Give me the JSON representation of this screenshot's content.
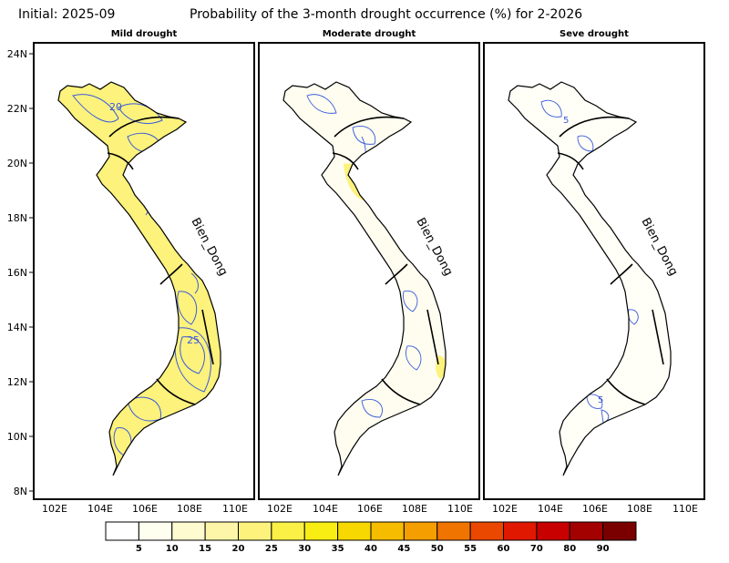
{
  "header": {
    "initial": "Initial: 2025-09",
    "title": "Probability of the 3-month drought occurrence (%) for 2-2026"
  },
  "panels": [
    {
      "title": "Mild drought",
      "contour_labels": [
        "20",
        "25"
      ],
      "sea_label": "Bien_Dong",
      "intensity": "high"
    },
    {
      "title": "Moderate drought",
      "contour_labels": [],
      "sea_label": "Bien_Dong",
      "intensity": "low"
    },
    {
      "title": "Seve drought",
      "contour_labels": [
        "5",
        "5"
      ],
      "sea_label": "Bien_Dong",
      "intensity": "minimal"
    }
  ],
  "axes": {
    "lat_labels": [
      "24N",
      "22N",
      "20N",
      "18N",
      "16N",
      "14N",
      "12N",
      "10N",
      "8N"
    ],
    "lon_labels": [
      "102E",
      "104E",
      "106E",
      "108E",
      "110E"
    ]
  },
  "colorbar": {
    "ticks": [
      "5",
      "10",
      "15",
      "20",
      "25",
      "30",
      "35",
      "40",
      "45",
      "50",
      "55",
      "60",
      "70",
      "80",
      "90"
    ],
    "colors": [
      "#ffffff",
      "#fffff0",
      "#fefbd0",
      "#fdf6a8",
      "#fcf27c",
      "#fbf046",
      "#f9ee14",
      "#f7d800",
      "#f6bc00",
      "#f59e00",
      "#f07400",
      "#ea4800",
      "#e01800",
      "#c80000",
      "#a30000",
      "#7a0000"
    ]
  }
}
